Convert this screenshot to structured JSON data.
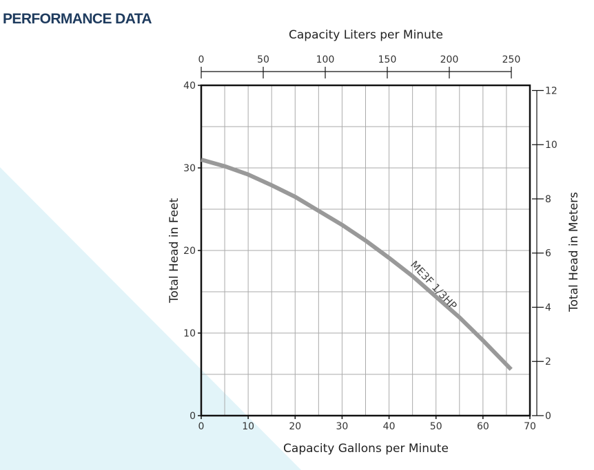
{
  "header": {
    "title": "PERFORMANCE DATA"
  },
  "colors": {
    "title": "#1e3b5e",
    "curve": "#999999",
    "grid": "#aaaaaa",
    "frame": "#111111",
    "background_triangle": "#e2f4f9"
  },
  "chart_data": {
    "type": "line",
    "title": "",
    "xlabel": "Capacity Gallons per Minute",
    "ylabel": "Total Head in Feet",
    "xlim": [
      0,
      70
    ],
    "ylim": [
      0,
      40
    ],
    "x_ticks": [
      0,
      10,
      20,
      30,
      40,
      50,
      60,
      70
    ],
    "y_ticks": [
      0,
      10,
      20,
      30,
      40
    ],
    "x_grid": [
      0,
      5,
      10,
      15,
      20,
      25,
      30,
      35,
      40,
      45,
      50,
      55,
      60,
      65,
      70
    ],
    "y_grid": [
      0,
      5,
      10,
      15,
      20,
      25,
      30,
      35,
      40
    ],
    "grid": true,
    "secondary_x": {
      "label": "Capacity Liters per Minute",
      "lim": [
        0,
        265
      ],
      "ticks": [
        0,
        50,
        100,
        150,
        200,
        250
      ],
      "position": "top"
    },
    "secondary_y": {
      "label": "Total Head in Meters",
      "lim": [
        0,
        12.19
      ],
      "ticks": [
        0,
        2,
        4,
        6,
        8,
        10,
        12
      ],
      "position": "right"
    },
    "series": [
      {
        "name": "ME3F 1/3HP",
        "x": [
          0,
          5,
          10,
          15,
          20,
          25,
          30,
          35,
          40,
          45,
          50,
          55,
          60,
          66
        ],
        "y": [
          31,
          30.2,
          29.2,
          27.9,
          26.5,
          24.8,
          23.1,
          21.2,
          19.1,
          16.9,
          14.4,
          11.9,
          9.1,
          5.6
        ]
      }
    ]
  }
}
